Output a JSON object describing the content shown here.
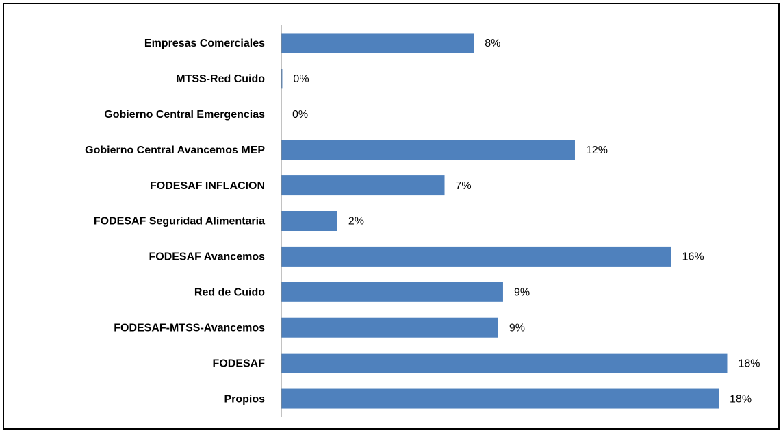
{
  "chart_data": {
    "type": "bar",
    "orientation": "horizontal",
    "categories": [
      "Empresas Comerciales",
      "MTSS-Red Cuido",
      "Gobierno Central Emergencias",
      "Gobierno Central Avancemos MEP",
      "FODESAF INFLACION",
      "FODESAF Seguridad Alimentaria",
      "FODESAF Avancemos",
      "Red de Cuido",
      "FODESAF-MTSS-Avancemos",
      "FODESAF",
      "Propios"
    ],
    "values": [
      7.9,
      0.04,
      0,
      12.05,
      6.7,
      2.3,
      16,
      9.1,
      8.9,
      18.3,
      17.95
    ],
    "value_labels": [
      "8%",
      "0%",
      "0%",
      "12%",
      "7%",
      "2%",
      "16%",
      "9%",
      "9%",
      "18%",
      "18%"
    ],
    "color": "#4f81bd",
    "xlim": [
      0,
      20
    ]
  }
}
